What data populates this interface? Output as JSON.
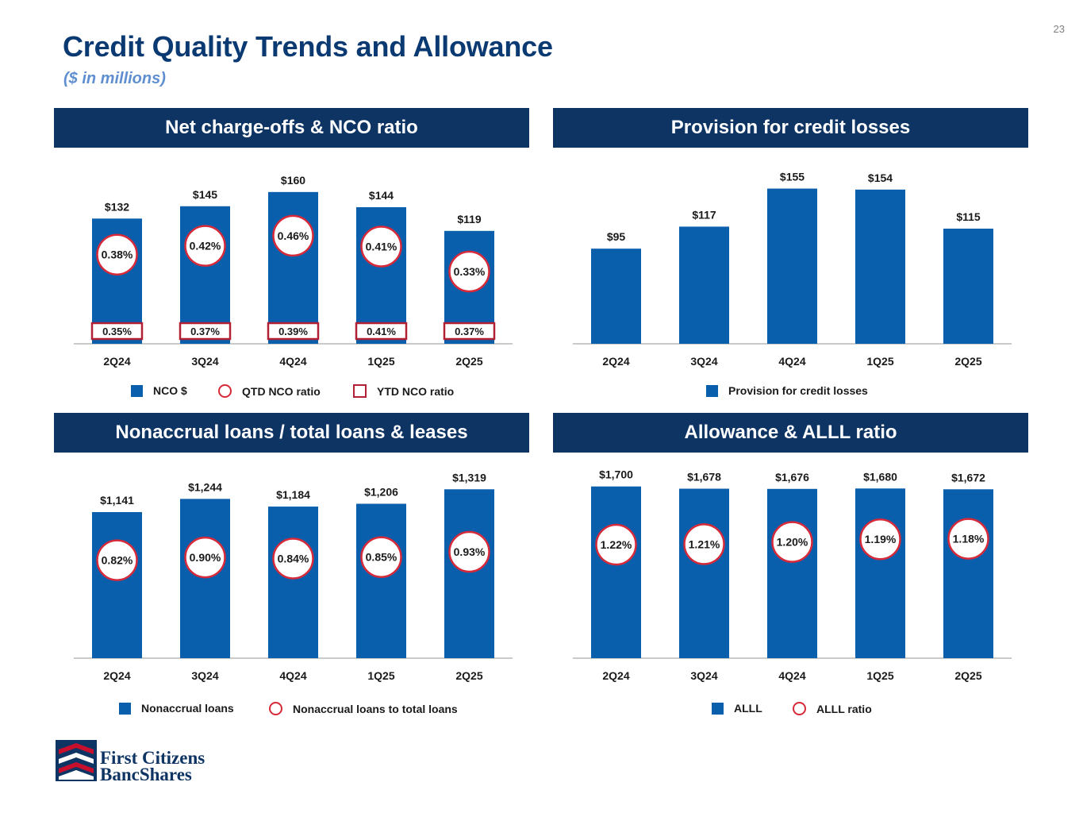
{
  "page_number": "23",
  "title": "Credit Quality Trends and Allowance",
  "subtitle": "($ in millions)",
  "colors": {
    "bar": "#0a5fad",
    "header_bg": "#0e3464",
    "circle": "#d62a3a",
    "box": "#b22035",
    "title": "#0b3a73",
    "subtitle": "#5f8fd0"
  },
  "icons": {
    "logo": "first-citizens-flag-logo"
  },
  "logo": {
    "line1": "First Citizens",
    "line2": "BancShares"
  },
  "chart_data": [
    {
      "id": "nco",
      "type": "bar",
      "title": "Net charge-offs & NCO ratio",
      "categories": [
        "2Q24",
        "3Q24",
        "4Q24",
        "1Q25",
        "2Q25"
      ],
      "series": [
        {
          "name": "NCO $",
          "values": [
            132,
            145,
            160,
            144,
            119
          ],
          "labels": [
            "$132",
            "$145",
            "$160",
            "$144",
            "$119"
          ]
        },
        {
          "name": "QTD NCO ratio",
          "values": [
            0.38,
            0.42,
            0.46,
            0.41,
            0.33
          ],
          "labels": [
            "0.38%",
            "0.42%",
            "0.46%",
            "0.41%",
            "0.33%"
          ]
        },
        {
          "name": "YTD NCO ratio",
          "values": [
            0.35,
            0.37,
            0.39,
            0.41,
            0.37
          ],
          "labels": [
            "0.35%",
            "0.37%",
            "0.39%",
            "0.41%",
            "0.37%"
          ]
        }
      ],
      "ylim": [
        0,
        190
      ],
      "legend": [
        "NCO $",
        "QTD NCO ratio",
        "YTD NCO ratio"
      ]
    },
    {
      "id": "provision",
      "type": "bar",
      "title": "Provision for credit losses",
      "categories": [
        "2Q24",
        "3Q24",
        "4Q24",
        "1Q25",
        "2Q25"
      ],
      "series": [
        {
          "name": "Provision for credit losses",
          "values": [
            95,
            117,
            155,
            154,
            115
          ],
          "labels": [
            "$95",
            "$117",
            "$155",
            "$154",
            "$115"
          ]
        }
      ],
      "ylim": [
        0,
        180
      ],
      "legend": [
        "Provision for credit losses"
      ]
    },
    {
      "id": "nonaccrual",
      "type": "bar",
      "title": "Nonaccrual loans / total loans & leases",
      "categories": [
        "2Q24",
        "3Q24",
        "4Q24",
        "1Q25",
        "2Q25"
      ],
      "series": [
        {
          "name": "Nonaccrual loans",
          "values": [
            1141,
            1244,
            1184,
            1206,
            1319
          ],
          "labels": [
            "$1,141",
            "$1,244",
            "$1,184",
            "$1,206",
            "$1,319"
          ]
        },
        {
          "name": "Nonaccrual loans to total loans",
          "values": [
            0.82,
            0.9,
            0.84,
            0.85,
            0.93
          ],
          "labels": [
            "0.82%",
            "0.90%",
            "0.84%",
            "0.85%",
            "0.93%"
          ]
        }
      ],
      "ylim": [
        0,
        1420
      ],
      "legend": [
        "Nonaccrual loans",
        "Nonaccrual loans to total loans"
      ]
    },
    {
      "id": "allowance",
      "type": "bar",
      "title": "Allowance & ALLL ratio",
      "categories": [
        "2Q24",
        "3Q24",
        "4Q24",
        "1Q25",
        "2Q25"
      ],
      "series": [
        {
          "name": "ALLL",
          "values": [
            1700,
            1678,
            1676,
            1680,
            1672
          ],
          "labels": [
            "$1,700",
            "$1,678",
            "$1,676",
            "$1,680",
            "$1,672"
          ]
        },
        {
          "name": "ALLL ratio",
          "values": [
            1.22,
            1.21,
            1.2,
            1.19,
            1.18
          ],
          "labels": [
            "1.22%",
            "1.21%",
            "1.20%",
            "1.19%",
            "1.18%"
          ]
        }
      ],
      "ylim": [
        0,
        1800
      ],
      "legend": [
        "ALLL",
        "ALLL ratio"
      ]
    }
  ]
}
